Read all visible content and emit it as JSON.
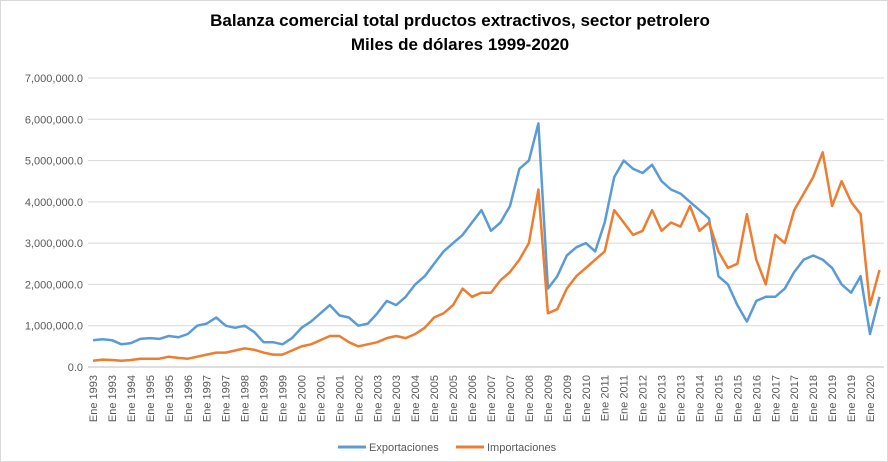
{
  "chart_data": {
    "type": "line",
    "title": "Balanza comercial total prductos extractivos, sector petrolero",
    "subtitle": "Miles de dólares 1999-2020",
    "categories": [
      "Ene 1993",
      null,
      "Ene 1993",
      null,
      "Ene 1994",
      null,
      "Ene 1995",
      null,
      "Ene 1995",
      null,
      "Ene 1996",
      null,
      "Ene 1997",
      null,
      "Ene 1997",
      null,
      "Ene 1998",
      null,
      "Ene 1999",
      null,
      "Ene 1999",
      null,
      "Ene 2000",
      null,
      "Ene 2001",
      null,
      "Ene 2001",
      null,
      "Ene 2002",
      null,
      "Ene 2003",
      null,
      "Ene 2003",
      null,
      "Ene 2004",
      null,
      "Ene 2005",
      null,
      "Ene 2005",
      null,
      "Ene 2006",
      null,
      "Ene 2007",
      null,
      "Ene 2007",
      null,
      "Ene 2008",
      null,
      "Ene 2009",
      null,
      "Ene 2009",
      null,
      "Ene 2010",
      null,
      "Ene 2011",
      null,
      "Ene 2011",
      null,
      "Ene 2012",
      null,
      "Ene 2013",
      null,
      "Ene 2013",
      null,
      "Ene 2014",
      null,
      "Ene 2015",
      null,
      "Ene 2015",
      null,
      "Ene 2016",
      null,
      "Ene 2017",
      null,
      "Ene 2017",
      null,
      "Ene 2018",
      null,
      "Ene 2019",
      null,
      "Ene 2019",
      null,
      "Ene 2020",
      null
    ],
    "series": [
      {
        "name": "Exportaciones",
        "color": "#5b9bd5",
        "values": [
          650000,
          670000,
          650000,
          550000,
          580000,
          680000,
          700000,
          680000,
          750000,
          720000,
          800000,
          1000000,
          1050000,
          1200000,
          1000000,
          950000,
          1000000,
          850000,
          600000,
          600000,
          550000,
          700000,
          950000,
          1100000,
          1300000,
          1500000,
          1250000,
          1200000,
          1000000,
          1050000,
          1300000,
          1600000,
          1500000,
          1700000,
          2000000,
          2200000,
          2500000,
          2800000,
          3000000,
          3200000,
          3500000,
          3800000,
          3300000,
          3500000,
          3900000,
          4800000,
          5000000,
          5900000,
          1900000,
          2200000,
          2700000,
          2900000,
          3000000,
          2800000,
          3500000,
          4600000,
          5000000,
          4800000,
          4700000,
          4900000,
          4500000,
          4300000,
          4200000,
          4000000,
          3800000,
          3600000,
          2200000,
          2000000,
          1500000,
          1100000,
          1600000,
          1700000,
          1700000,
          1900000,
          2300000,
          2600000,
          2700000,
          2600000,
          2400000,
          2000000,
          1800000,
          2200000,
          800000,
          1700000
        ]
      },
      {
        "name": "Importaciones",
        "color": "#ed7d31",
        "values": [
          150000,
          180000,
          170000,
          150000,
          170000,
          200000,
          200000,
          200000,
          250000,
          220000,
          200000,
          250000,
          300000,
          350000,
          350000,
          400000,
          450000,
          420000,
          350000,
          300000,
          300000,
          400000,
          500000,
          550000,
          650000,
          750000,
          750000,
          600000,
          500000,
          550000,
          600000,
          700000,
          750000,
          700000,
          800000,
          950000,
          1200000,
          1300000,
          1500000,
          1900000,
          1700000,
          1800000,
          1800000,
          2100000,
          2300000,
          2600000,
          3000000,
          4300000,
          1300000,
          1400000,
          1900000,
          2200000,
          2400000,
          2600000,
          2800000,
          3800000,
          3500000,
          3200000,
          3300000,
          3800000,
          3300000,
          3500000,
          3400000,
          3900000,
          3300000,
          3500000,
          2800000,
          2400000,
          2500000,
          3700000,
          2600000,
          2000000,
          3200000,
          3000000,
          3800000,
          4200000,
          4600000,
          5200000,
          3900000,
          4500000,
          4000000,
          3700000,
          1500000,
          2350000
        ]
      }
    ],
    "ylim": [
      0,
      7000000
    ],
    "yticks": [
      {
        "value": 0,
        "label": "0.0"
      },
      {
        "value": 1000000,
        "label": "1,000,000.0"
      },
      {
        "value": 2000000,
        "label": "2,000,000.0"
      },
      {
        "value": 3000000,
        "label": "3,000,000.0"
      },
      {
        "value": 4000000,
        "label": "4,000,000.0"
      },
      {
        "value": 5000000,
        "label": "5,000,000.0"
      },
      {
        "value": 6000000,
        "label": "6,000,000.0"
      },
      {
        "value": 7000000,
        "label": "7,000,000.0"
      }
    ],
    "grid": true,
    "legend": "bottom"
  }
}
